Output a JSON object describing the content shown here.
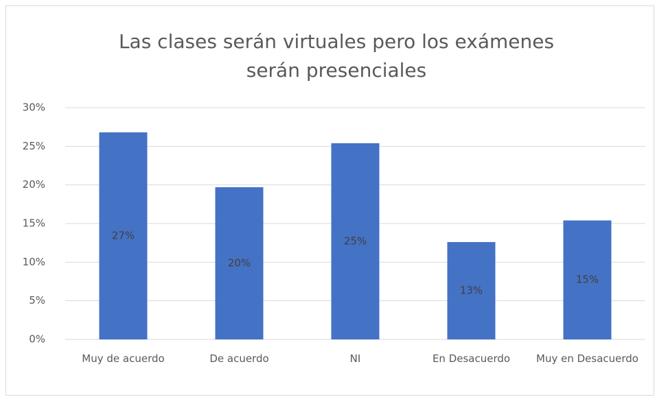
{
  "chart_data": {
    "type": "bar",
    "title": "Las clases serán virtuales pero los exámenes serán presenciales",
    "categories": [
      "Muy de acuerdo",
      "De acuerdo",
      "NI",
      "En Desacuerdo",
      "Muy en Desacuerdo"
    ],
    "values": [
      26.8,
      19.7,
      25.4,
      12.6,
      15.4
    ],
    "value_labels": [
      "27%",
      "20%",
      "25%",
      "13%",
      "15%"
    ],
    "color": "#4472c4",
    "ylim": [
      0,
      30
    ],
    "yticks": [
      {
        "value": 0,
        "label": "0%"
      },
      {
        "value": 5,
        "label": "5%"
      },
      {
        "value": 10,
        "label": "10%"
      },
      {
        "value": 15,
        "label": "15%"
      },
      {
        "value": 20,
        "label": "20%"
      },
      {
        "value": 25,
        "label": "25%"
      },
      {
        "value": 30,
        "label": "30%"
      }
    ],
    "grid": true
  }
}
